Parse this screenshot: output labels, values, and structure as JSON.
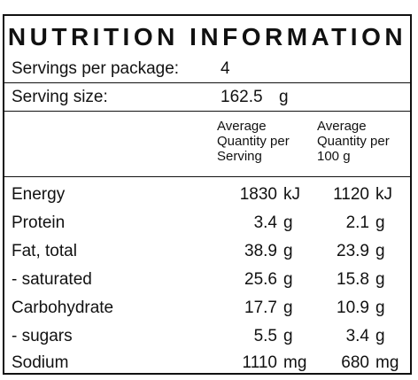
{
  "panel": {
    "title": "NUTRITION INFORMATION",
    "servings_per_package_label": "Servings per package:",
    "servings_per_package_value": "4",
    "serving_size_label": "Serving size:",
    "serving_size_value": "162.5",
    "serving_size_unit": "g",
    "column_header_per_serving": "Average\nQuantity per\nServing",
    "column_header_per_100g": "Average\nQuantity per\n100 g",
    "rows": [
      {
        "name": "Energy",
        "per_serving": "1830",
        "per_serving_unit": "kJ",
        "per_100g": "1120",
        "per_100g_unit": "kJ"
      },
      {
        "name": "Protein",
        "per_serving": "3.4",
        "per_serving_unit": "g",
        "per_100g": "2.1",
        "per_100g_unit": "g"
      },
      {
        "name": "Fat, total",
        "per_serving": "38.9",
        "per_serving_unit": "g",
        "per_100g": "23.9",
        "per_100g_unit": "g"
      },
      {
        "name": "- saturated",
        "per_serving": "25.6",
        "per_serving_unit": "g",
        "per_100g": "15.8",
        "per_100g_unit": "g"
      },
      {
        "name": "Carbohydrate",
        "per_serving": "17.7",
        "per_serving_unit": "g",
        "per_100g": "10.9",
        "per_100g_unit": "g"
      },
      {
        "name": "- sugars",
        "per_serving": "5.5",
        "per_serving_unit": "g",
        "per_100g": "3.4",
        "per_100g_unit": "g"
      },
      {
        "name": "Sodium",
        "per_serving": "1110",
        "per_serving_unit": "mg",
        "per_100g": "680",
        "per_100g_unit": "mg"
      }
    ]
  }
}
